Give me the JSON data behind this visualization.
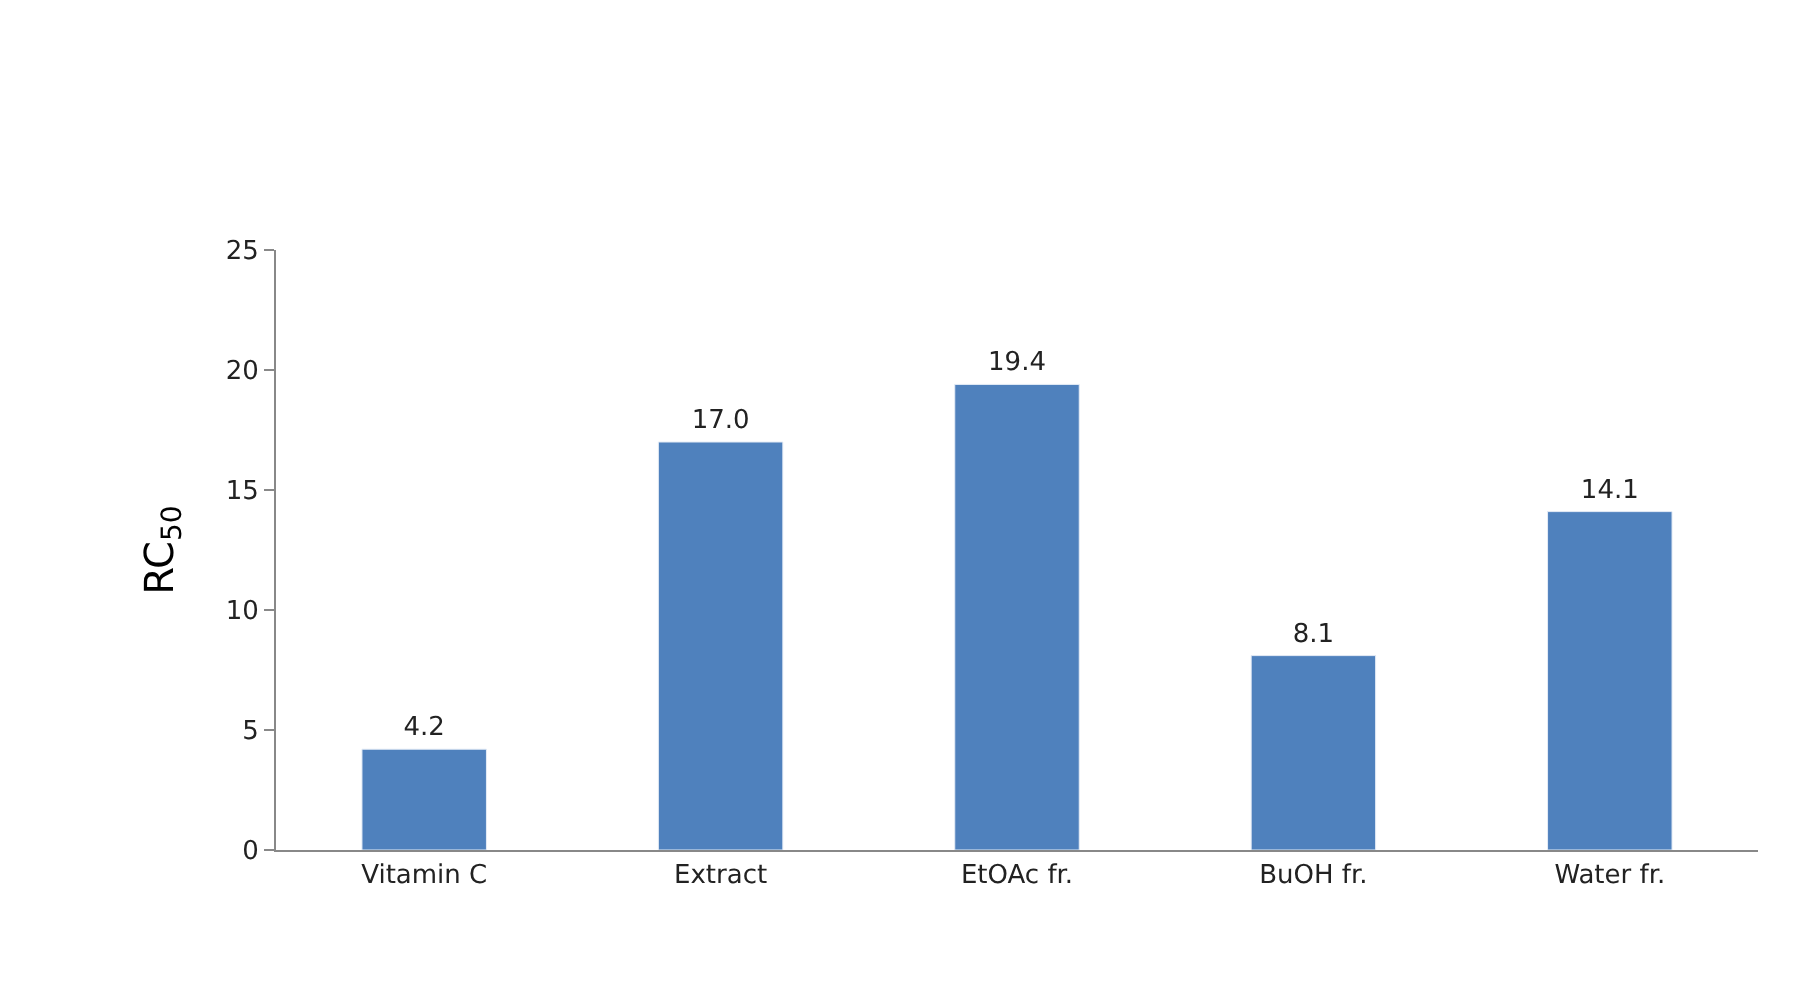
{
  "chart_data": {
    "type": "bar",
    "ylabel": "RC$_{50}$",
    "categories": [
      "Vitamin C",
      "Extract",
      "EtOAc fr.",
      "BuOH fr.",
      "Water fr."
    ],
    "values": [
      4.2,
      17.0,
      19.4,
      8.1,
      14.1
    ],
    "value_labels": [
      "4.2",
      "17.0",
      "19.4",
      "8.1",
      "14.1"
    ],
    "color": "#4f81bd",
    "ylim": [
      0,
      25
    ],
    "yticks": [
      0,
      5,
      10,
      15,
      20,
      25
    ]
  }
}
